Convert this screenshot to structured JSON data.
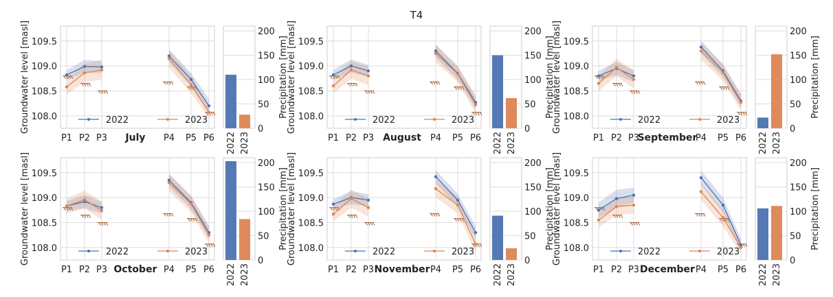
{
  "chart_data": {
    "type": "line",
    "title": "T4",
    "x_categories": [
      "P1",
      "P2",
      "P3",
      "P4",
      "P5",
      "P6"
    ],
    "ylabel": "Groundwater level [masl]",
    "y_ticks": [
      "108.0",
      "108.5",
      "109.0",
      "109.5"
    ],
    "ylim": [
      107.75,
      109.8
    ],
    "precip_ylabel": "Precipitation [mm]",
    "precip_ticks": [
      "0",
      "50",
      "100",
      "150",
      "200"
    ],
    "precip_ylim": [
      0,
      210
    ],
    "precip_categories": [
      "2022",
      "2023"
    ],
    "legend": [
      "2022",
      "2023"
    ],
    "colors": {
      "s2022": "#4c72b0",
      "s2023": "#dd8452",
      "grid": "#dcdcdc",
      "threshold": "#a05a2c"
    },
    "thresholds": [
      108.8,
      108.65,
      108.5,
      108.68,
      108.58,
      108.07
    ],
    "panels": [
      {
        "month": "July",
        "series": [
          {
            "name": "2022",
            "values": [
              108.82,
              108.99,
              108.98,
              109.2,
              108.73,
              108.2
            ],
            "lower": [
              108.72,
              108.86,
              108.86,
              109.07,
              108.6,
              108.06
            ],
            "upper": [
              108.92,
              109.12,
              109.1,
              109.33,
              108.86,
              108.34
            ]
          },
          {
            "name": "2023",
            "values": [
              108.58,
              108.86,
              108.92,
              109.15,
              108.62,
              108.07
            ],
            "lower": [
              108.43,
              108.68,
              108.72,
              108.97,
              108.45,
              107.95
            ],
            "upper": [
              108.73,
              109.04,
              109.12,
              109.33,
              108.8,
              108.19
            ]
          }
        ],
        "precip": [
          110,
          28
        ]
      },
      {
        "month": "August",
        "series": [
          {
            "name": "2022",
            "values": [
              108.82,
              109.0,
              108.9,
              109.3,
              108.85,
              108.27
            ],
            "lower": [
              108.72,
              108.87,
              108.78,
              109.17,
              108.72,
              108.14
            ],
            "upper": [
              108.92,
              109.13,
              109.02,
              109.43,
              108.98,
              108.4
            ]
          },
          {
            "name": "2023",
            "values": [
              108.6,
              108.92,
              108.8,
              109.25,
              108.84,
              108.22
            ],
            "lower": [
              108.45,
              108.74,
              108.62,
              109.08,
              108.67,
              108.05
            ],
            "upper": [
              108.75,
              109.1,
              108.98,
              109.42,
              109.01,
              108.39
            ]
          }
        ],
        "precip": [
          150,
          62
        ]
      },
      {
        "month": "September",
        "series": [
          {
            "name": "2022",
            "values": [
              108.8,
              108.95,
              108.8,
              109.38,
              108.9,
              108.3
            ],
            "lower": [
              108.7,
              108.82,
              108.68,
              109.25,
              108.77,
              108.17
            ],
            "upper": [
              108.9,
              109.08,
              108.92,
              109.51,
              109.03,
              108.43
            ]
          },
          {
            "name": "2023",
            "values": [
              108.65,
              108.97,
              108.73,
              109.3,
              108.87,
              108.27
            ],
            "lower": [
              108.5,
              108.79,
              108.55,
              109.13,
              108.7,
              108.1
            ],
            "upper": [
              108.8,
              109.15,
              108.91,
              109.47,
              109.04,
              108.44
            ]
          }
        ],
        "precip": [
          22,
          152
        ]
      },
      {
        "month": "October",
        "series": [
          {
            "name": "2022",
            "values": [
              108.83,
              108.92,
              108.8,
              109.35,
              108.9,
              108.3
            ],
            "lower": [
              108.73,
              108.79,
              108.68,
              109.22,
              108.77,
              108.17
            ],
            "upper": [
              108.93,
              109.05,
              108.92,
              109.48,
              109.03,
              108.43
            ]
          },
          {
            "name": "2023",
            "values": [
              108.83,
              108.96,
              108.74,
              109.3,
              108.88,
              108.25
            ],
            "lower": [
              108.68,
              108.78,
              108.56,
              109.13,
              108.71,
              108.08
            ],
            "upper": [
              108.98,
              109.14,
              108.92,
              109.47,
              109.05,
              108.42
            ]
          }
        ],
        "precip": [
          203,
          84
        ]
      },
      {
        "month": "November",
        "series": [
          {
            "name": "2022",
            "values": [
              108.87,
              109.0,
              108.95,
              109.42,
              108.95,
              108.3
            ],
            "lower": [
              108.77,
              108.87,
              108.83,
              109.29,
              108.82,
              108.17
            ],
            "upper": [
              108.97,
              109.13,
              109.07,
              109.55,
              109.08,
              108.43
            ]
          },
          {
            "name": "2023",
            "values": [
              108.67,
              108.98,
              108.8,
              109.18,
              108.85,
              108.07
            ],
            "lower": [
              108.52,
              108.8,
              108.62,
              109.01,
              108.68,
              107.9
            ],
            "upper": [
              108.82,
              109.16,
              108.98,
              109.35,
              109.02,
              108.24
            ]
          }
        ],
        "precip": [
          91,
          24
        ]
      },
      {
        "month": "December",
        "series": [
          {
            "name": "2022",
            "values": [
              108.75,
              108.98,
              109.05,
              109.4,
              108.85,
              108.05
            ],
            "lower": [
              108.6,
              108.8,
              108.9,
              109.25,
              108.7,
              107.92
            ],
            "upper": [
              108.9,
              109.16,
              109.2,
              109.55,
              109.0,
              108.18
            ]
          },
          {
            "name": "2023",
            "values": [
              108.55,
              108.82,
              108.85,
              109.12,
              108.6,
              108.0
            ],
            "lower": [
              108.4,
              108.65,
              108.68,
              108.95,
              108.43,
              107.88
            ],
            "upper": [
              108.7,
              108.99,
              109.02,
              109.29,
              108.77,
              108.12
            ]
          }
        ],
        "precip": [
          106,
          111
        ]
      }
    ]
  }
}
